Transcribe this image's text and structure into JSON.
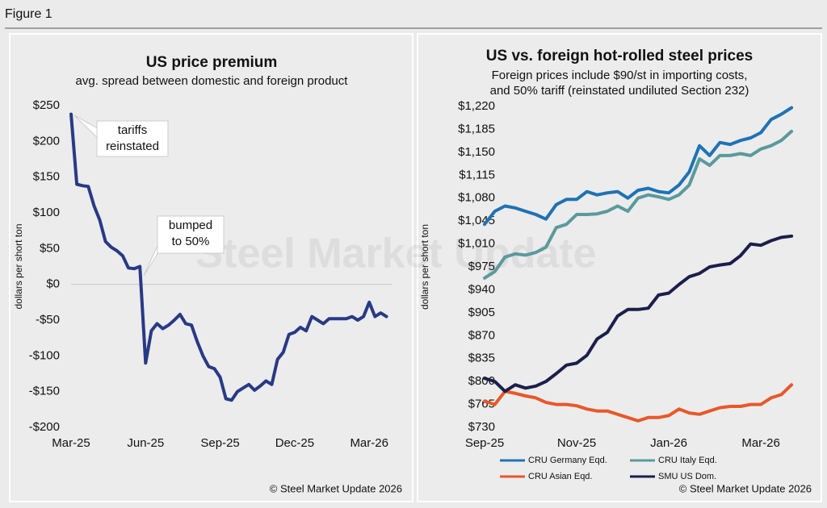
{
  "figure_label": "Figure 1",
  "watermark": "Steel Market Update",
  "chart_data": [
    {
      "type": "line",
      "title": "US price premium",
      "subtitle": [
        "avg. spread between domestic and foreign product"
      ],
      "y_label": "dollars per short ton",
      "source": "© Steel Market Update 2026",
      "categories": [
        "Mar-25",
        null,
        null,
        null,
        null,
        null,
        null,
        null,
        null,
        null,
        null,
        null,
        null,
        "Jun-25",
        null,
        null,
        null,
        null,
        null,
        null,
        null,
        null,
        null,
        null,
        null,
        null,
        "Sep-25",
        null,
        null,
        null,
        null,
        null,
        null,
        null,
        null,
        null,
        null,
        null,
        null,
        "Dec-25",
        null,
        null,
        null,
        null,
        null,
        null,
        null,
        null,
        null,
        null,
        null,
        null,
        "Mar-26",
        null,
        null,
        null
      ],
      "values": [
        238,
        140,
        138,
        137,
        110,
        90,
        60,
        52,
        47,
        40,
        23,
        22,
        25,
        -110,
        -65,
        -55,
        -62,
        -57,
        -50,
        -42,
        -55,
        -57,
        -80,
        -100,
        -115,
        -118,
        -130,
        -160,
        -162,
        -150,
        -145,
        -140,
        -148,
        -142,
        -135,
        -140,
        -105,
        -95,
        -70,
        -67,
        -60,
        -65,
        -45,
        -50,
        -55,
        -48,
        -48,
        -48,
        -48,
        -45,
        -50,
        -45,
        -25,
        -45,
        -40,
        -45
      ],
      "color": "#283a85",
      "ylim": [
        -200,
        250
      ],
      "yticks": [
        {
          "value": -200,
          "label": "-$200"
        },
        {
          "value": -150,
          "label": "-$150"
        },
        {
          "value": -100,
          "label": "-$100"
        },
        {
          "value": -50,
          "label": "-$50"
        },
        {
          "value": 0,
          "label": "$0"
        },
        {
          "value": 50,
          "label": "$50"
        },
        {
          "value": 100,
          "label": "$100"
        },
        {
          "value": 150,
          "label": "$150"
        },
        {
          "value": 200,
          "label": "$200"
        },
        {
          "value": 250,
          "label": "$250"
        }
      ],
      "zero_line": true,
      "annotations": [
        {
          "text": [
            "tariffs",
            "reinstated"
          ]
        },
        {
          "text": [
            "bumped",
            "to 50%"
          ]
        }
      ]
    },
    {
      "type": "line",
      "title": "US vs. foreign hot-rolled steel prices",
      "subtitle": [
        "Foreign prices include $90/st in importing costs,",
        "and 50% tariff (reinstated undiluted Section 232)"
      ],
      "y_label": "dollars per short ton",
      "source": "© Steel Market Update 2026",
      "categories": [
        "Sep-25",
        null,
        null,
        null,
        null,
        null,
        null,
        null,
        null,
        "Nov-25",
        null,
        null,
        null,
        null,
        null,
        null,
        null,
        null,
        "Jan-26",
        null,
        null,
        null,
        null,
        null,
        null,
        null,
        null,
        "Mar-26",
        null,
        null,
        null
      ],
      "series": [
        {
          "name": "CRU Germany Eqd.",
          "color": "#1f72b4",
          "values": [
            1040,
            1060,
            1068,
            1065,
            1060,
            1055,
            1048,
            1070,
            1078,
            1078,
            1090,
            1085,
            1088,
            1090,
            1080,
            1092,
            1095,
            1090,
            1088,
            1100,
            1120,
            1160,
            1145,
            1165,
            1162,
            1168,
            1172,
            1180,
            1200,
            1208,
            1218
          ]
        },
        {
          "name": "CRU Italy Eqd.",
          "color": "#5a9a9c",
          "values": [
            958,
            968,
            990,
            995,
            993,
            997,
            1005,
            1035,
            1040,
            1055,
            1055,
            1056,
            1060,
            1068,
            1060,
            1080,
            1085,
            1082,
            1078,
            1085,
            1100,
            1140,
            1130,
            1145,
            1145,
            1148,
            1145,
            1155,
            1160,
            1168,
            1182
          ]
        },
        {
          "name": "CRU Asian Eqd.",
          "color": "#e8582a",
          "values": [
            770,
            765,
            785,
            782,
            778,
            775,
            768,
            765,
            765,
            763,
            758,
            755,
            755,
            750,
            745,
            740,
            745,
            745,
            748,
            758,
            752,
            750,
            755,
            760,
            762,
            762,
            765,
            765,
            775,
            780,
            795
          ]
        },
        {
          "name": "SMU US Dom.",
          "color": "#1b1f4b",
          "values": [
            805,
            800,
            785,
            795,
            790,
            793,
            800,
            812,
            825,
            828,
            840,
            865,
            875,
            900,
            910,
            910,
            912,
            932,
            935,
            948,
            960,
            965,
            975,
            978,
            980,
            992,
            1010,
            1008,
            1015,
            1020,
            1022
          ]
        }
      ],
      "ylim": [
        730,
        1220
      ],
      "yticks": [
        {
          "value": 730,
          "label": "$730"
        },
        {
          "value": 765,
          "label": "$765"
        },
        {
          "value": 800,
          "label": "$800"
        },
        {
          "value": 835,
          "label": "$835"
        },
        {
          "value": 870,
          "label": "$870"
        },
        {
          "value": 905,
          "label": "$905"
        },
        {
          "value": 940,
          "label": "$940"
        },
        {
          "value": 975,
          "label": "$975"
        },
        {
          "value": 1010,
          "label": "$1,010"
        },
        {
          "value": 1045,
          "label": "$1,045"
        },
        {
          "value": 1080,
          "label": "$1,080"
        },
        {
          "value": 1115,
          "label": "$1,115"
        },
        {
          "value": 1150,
          "label": "$1,150"
        },
        {
          "value": 1185,
          "label": "$1,185"
        },
        {
          "value": 1220,
          "label": "$1,220"
        }
      ],
      "legend": "bottom"
    }
  ]
}
